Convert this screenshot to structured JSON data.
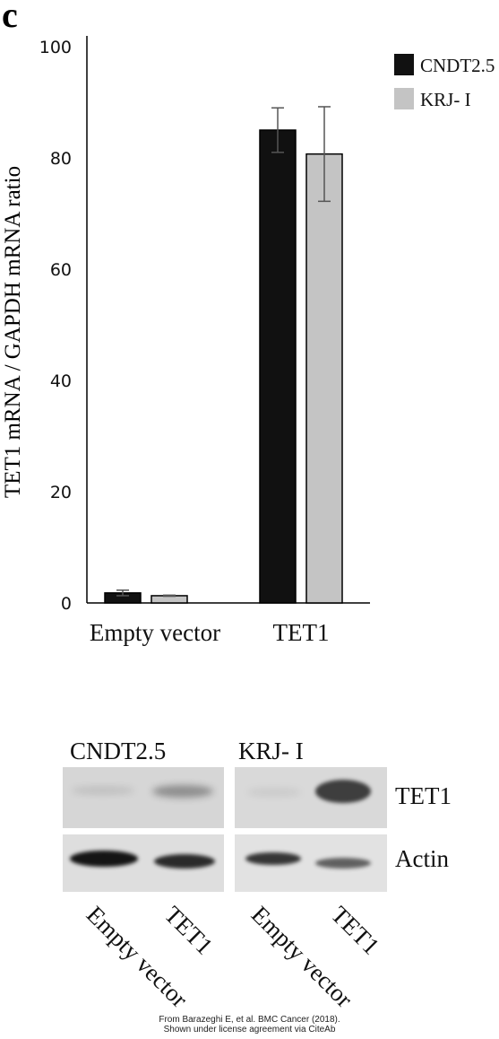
{
  "panel_letter": "c",
  "chart_data": {
    "type": "bar",
    "title": "",
    "xlabel": "",
    "ylabel": "TET1 mRNA / GAPDH mRNA ratio",
    "categories": [
      "Empty vector",
      "TET1"
    ],
    "series": [
      {
        "name": "CNDT2.5",
        "values": [
          1.8,
          85.0
        ],
        "errors": [
          0.5,
          4.0
        ],
        "color": "#111111"
      },
      {
        "name": "KRJ- I",
        "values": [
          1.3,
          80.7
        ],
        "errors": [
          0.1,
          8.5
        ],
        "color": "#c4c4c4"
      }
    ],
    "ylim": [
      0,
      100
    ],
    "yticks": [
      "0",
      "20",
      "40",
      "60",
      "80",
      "100"
    ],
    "grid": false,
    "legend": "top-right"
  },
  "western_blot": {
    "cell_lines": [
      "CNDT2.5",
      "KRJ- I"
    ],
    "proteins": [
      "TET1",
      "Actin"
    ],
    "lanes": [
      [
        "Empty vector",
        "TET1"
      ],
      [
        "Empty vector",
        "TET1"
      ]
    ],
    "band_intensity": {
      "TET1": [
        0.12,
        0.35,
        0.08,
        0.75
      ],
      "Actin": [
        0.95,
        0.85,
        0.8,
        0.6
      ]
    }
  },
  "credit": {
    "line1": "From Barazeghi E, et al. BMC Cancer (2018).",
    "line2": "Shown under license agreement via CiteAb"
  }
}
